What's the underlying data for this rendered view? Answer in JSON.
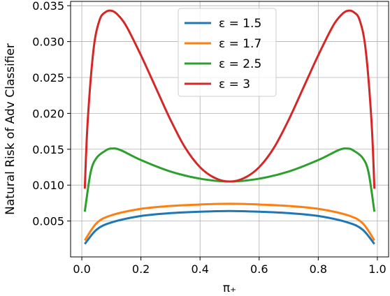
{
  "chart_data": {
    "type": "line",
    "xlabel": "π₊",
    "ylabel": "Natural Risk of Adv Classifier",
    "xlim": [
      -0.038,
      1.038
    ],
    "ylim": [
      0.0,
      0.0356
    ],
    "xticks": [
      0.0,
      0.2,
      0.4,
      0.6,
      0.8,
      1.0
    ],
    "xtick_labels": [
      "0.0",
      "0.2",
      "0.4",
      "0.6",
      "0.8",
      "1.0"
    ],
    "yticks": [
      0.005,
      0.01,
      0.015,
      0.02,
      0.025,
      0.03,
      0.035
    ],
    "ytick_labels": [
      "0.005",
      "0.010",
      "0.015",
      "0.020",
      "0.025",
      "0.030",
      "0.035"
    ],
    "grid": true,
    "legend_position": "top-center",
    "series": [
      {
        "name": "ε = 1.5",
        "color": "#1f77b4",
        "x": [
          0.01,
          0.05,
          0.1,
          0.2,
          0.3,
          0.4,
          0.5,
          0.6,
          0.7,
          0.8,
          0.9,
          0.95,
          0.99
        ],
        "y": [
          0.0018,
          0.0038,
          0.0048,
          0.0057,
          0.0061,
          0.0063,
          0.0064,
          0.0063,
          0.0061,
          0.0057,
          0.0048,
          0.0038,
          0.0018
        ]
      },
      {
        "name": "ε = 1.7",
        "color": "#ff7f0e",
        "x": [
          0.01,
          0.05,
          0.1,
          0.2,
          0.3,
          0.4,
          0.5,
          0.6,
          0.7,
          0.8,
          0.9,
          0.95,
          0.99
        ],
        "y": [
          0.0023,
          0.0047,
          0.0058,
          0.0067,
          0.0071,
          0.0073,
          0.0074,
          0.0073,
          0.0071,
          0.0067,
          0.0058,
          0.0047,
          0.0023
        ]
      },
      {
        "name": "ε = 2.5",
        "color": "#2ca02c",
        "x": [
          0.01,
          0.03,
          0.05,
          0.08,
          0.1,
          0.13,
          0.2,
          0.3,
          0.4,
          0.5,
          0.6,
          0.7,
          0.8,
          0.87,
          0.9,
          0.92,
          0.95,
          0.97,
          0.99
        ],
        "y": [
          0.0063,
          0.0118,
          0.0138,
          0.0148,
          0.0151,
          0.0149,
          0.0135,
          0.0119,
          0.0109,
          0.0105,
          0.0109,
          0.0119,
          0.0135,
          0.0149,
          0.0151,
          0.0148,
          0.0138,
          0.0118,
          0.0063
        ]
      },
      {
        "name": "ε = 3",
        "color": "#d62728",
        "x": [
          0.01,
          0.02,
          0.04,
          0.06,
          0.08,
          0.1,
          0.12,
          0.15,
          0.2,
          0.25,
          0.3,
          0.35,
          0.4,
          0.45,
          0.5,
          0.55,
          0.6,
          0.65,
          0.7,
          0.75,
          0.8,
          0.85,
          0.88,
          0.9,
          0.92,
          0.94,
          0.96,
          0.98,
          0.99
        ],
        "y": [
          0.0095,
          0.019,
          0.029,
          0.033,
          0.0341,
          0.0343,
          0.0338,
          0.0322,
          0.0281,
          0.0236,
          0.0191,
          0.0152,
          0.0125,
          0.011,
          0.0105,
          0.011,
          0.0125,
          0.0152,
          0.0191,
          0.0236,
          0.0281,
          0.0322,
          0.0338,
          0.0343,
          0.0341,
          0.033,
          0.029,
          0.019,
          0.0095
        ]
      }
    ]
  }
}
